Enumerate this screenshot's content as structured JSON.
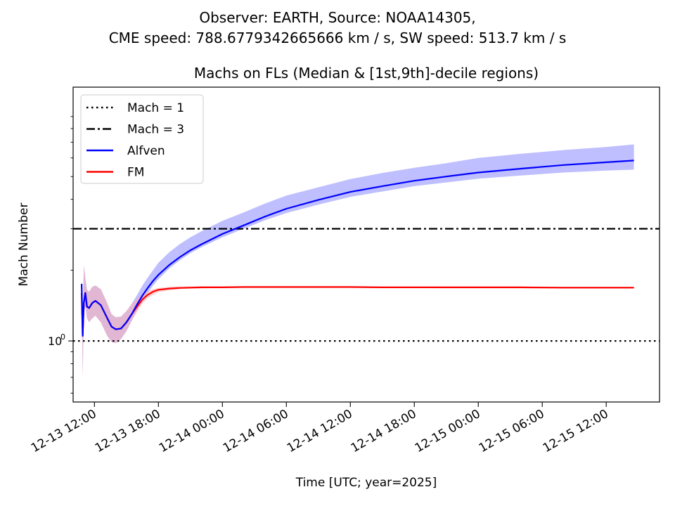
{
  "chart_data": {
    "type": "line",
    "suptitle_line1": "Observer: EARTH, Source: NOAA14305,",
    "suptitle_line2": "CME speed: 788.6779342665666 km / s, SW speed: 513.7 km / s",
    "title": "Machs on FLs (Median & [1st,9th]-decile regions)",
    "xlabel": "Time [UTC; year=2025]",
    "ylabel": "Mach Number",
    "yscale": "log",
    "ylim": [
      0.55,
      12.0
    ],
    "x_range_hours_from_start": [
      -2.0,
      53.0
    ],
    "x_ticks": [
      {
        "label": "12-13 12:00",
        "hour": 0
      },
      {
        "label": "12-13 18:00",
        "hour": 6
      },
      {
        "label": "12-14 00:00",
        "hour": 12
      },
      {
        "label": "12-14 06:00",
        "hour": 18
      },
      {
        "label": "12-14 12:00",
        "hour": 24
      },
      {
        "label": "12-14 18:00",
        "hour": 30
      },
      {
        "label": "12-15 00:00",
        "hour": 36
      },
      {
        "label": "12-15 06:00",
        "hour": 42
      },
      {
        "label": "12-15 12:00",
        "hour": 48
      }
    ],
    "y_ticks": [
      {
        "label": "10",
        "exp": "0",
        "value": 1.0
      }
    ],
    "legend_position": "upper left",
    "hlines": [
      {
        "name": "Mach = 1",
        "y": 1.0,
        "style": "dotted",
        "color": "#000000"
      },
      {
        "name": "Mach = 3",
        "y": 3.0,
        "style": "dashdot",
        "color": "#000000"
      }
    ],
    "series": [
      {
        "name": "Alfven",
        "color": "#0000ff",
        "band_color": "#8080ff",
        "x_hours": [
          -1.2,
          -1.1,
          -1.0,
          -0.85,
          -0.7,
          -0.5,
          -0.2,
          0.1,
          0.6,
          1.2,
          1.6,
          2.0,
          2.5,
          3.0,
          3.5,
          4.0,
          4.5,
          5.0,
          5.5,
          6.0,
          7.0,
          8.0,
          9.0,
          10.0,
          12.0,
          14.0,
          16.0,
          18.0,
          21.0,
          24.0,
          27.0,
          30.0,
          33.0,
          36.0,
          40.0,
          44.0,
          48.0,
          50.6
        ],
        "median": [
          1.75,
          1.05,
          1.45,
          1.6,
          1.4,
          1.38,
          1.45,
          1.48,
          1.42,
          1.25,
          1.15,
          1.12,
          1.13,
          1.2,
          1.3,
          1.43,
          1.56,
          1.68,
          1.8,
          1.91,
          2.1,
          2.27,
          2.43,
          2.57,
          2.85,
          3.1,
          3.38,
          3.65,
          3.98,
          4.3,
          4.55,
          4.8,
          5.0,
          5.2,
          5.4,
          5.6,
          5.75,
          5.85
        ],
        "lower": [
          1.7,
          0.7,
          1.3,
          1.4,
          1.25,
          1.2,
          1.25,
          1.28,
          1.2,
          1.05,
          0.99,
          0.98,
          1.02,
          1.1,
          1.22,
          1.35,
          1.48,
          1.6,
          1.72,
          1.83,
          2.03,
          2.2,
          2.36,
          2.5,
          2.76,
          3.0,
          3.26,
          3.5,
          3.8,
          4.1,
          4.32,
          4.55,
          4.72,
          4.9,
          5.05,
          5.2,
          5.3,
          5.35
        ],
        "upper": [
          1.8,
          1.2,
          2.1,
          1.85,
          1.65,
          1.62,
          1.7,
          1.72,
          1.66,
          1.45,
          1.3,
          1.26,
          1.27,
          1.34,
          1.44,
          1.57,
          1.72,
          1.86,
          2.0,
          2.15,
          2.38,
          2.58,
          2.76,
          2.92,
          3.24,
          3.52,
          3.84,
          4.15,
          4.5,
          4.88,
          5.18,
          5.45,
          5.7,
          6.0,
          6.25,
          6.48,
          6.68,
          6.85
        ]
      },
      {
        "name": "FM",
        "color": "#ff0000",
        "band_color": "#ffb0b0",
        "x_hours": [
          -1.2,
          -1.1,
          -1.0,
          -0.85,
          -0.7,
          -0.5,
          -0.2,
          0.1,
          0.6,
          1.2,
          1.6,
          2.0,
          2.5,
          3.0,
          3.5,
          4.0,
          4.5,
          5.0,
          5.5,
          6.0,
          7.0,
          8.0,
          9.0,
          10.0,
          12.0,
          14.0,
          16.0,
          18.0,
          21.0,
          24.0,
          27.0,
          30.0,
          33.0,
          36.0,
          40.0,
          44.0,
          48.0,
          50.6
        ],
        "median": [
          1.6,
          1.05,
          1.45,
          1.6,
          1.4,
          1.38,
          1.45,
          1.48,
          1.42,
          1.25,
          1.15,
          1.12,
          1.13,
          1.2,
          1.3,
          1.4,
          1.5,
          1.57,
          1.62,
          1.65,
          1.67,
          1.68,
          1.685,
          1.69,
          1.69,
          1.695,
          1.695,
          1.695,
          1.695,
          1.695,
          1.69,
          1.69,
          1.69,
          1.69,
          1.69,
          1.685,
          1.685,
          1.685
        ],
        "lower": [
          1.55,
          0.7,
          1.3,
          1.4,
          1.25,
          1.2,
          1.25,
          1.28,
          1.2,
          1.05,
          0.99,
          0.98,
          1.02,
          1.1,
          1.22,
          1.33,
          1.44,
          1.52,
          1.57,
          1.61,
          1.64,
          1.66,
          1.67,
          1.675,
          1.68,
          1.68,
          1.68,
          1.68,
          1.68,
          1.68,
          1.68,
          1.68,
          1.675,
          1.675,
          1.675,
          1.67,
          1.67,
          1.67
        ],
        "upper": [
          1.7,
          1.2,
          2.1,
          1.85,
          1.65,
          1.62,
          1.7,
          1.72,
          1.66,
          1.45,
          1.3,
          1.26,
          1.27,
          1.34,
          1.44,
          1.52,
          1.58,
          1.63,
          1.66,
          1.68,
          1.7,
          1.705,
          1.71,
          1.71,
          1.71,
          1.71,
          1.71,
          1.71,
          1.71,
          1.71,
          1.705,
          1.705,
          1.705,
          1.705,
          1.705,
          1.7,
          1.7,
          1.7
        ]
      }
    ]
  }
}
